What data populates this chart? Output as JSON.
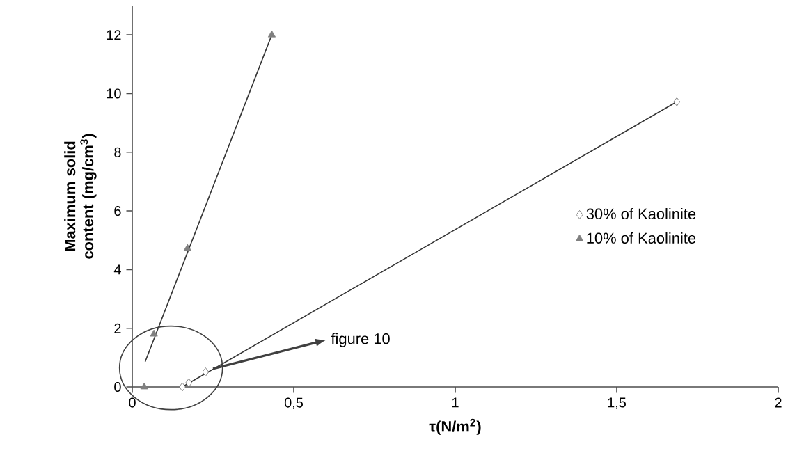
{
  "chart_data": {
    "type": "scatter",
    "xlabel": "τ(N/m$^{2}$)",
    "ylabel": "Maximum solid content (mg/cm$^{3}$)",
    "xlim": [
      0,
      2
    ],
    "ylim": [
      0,
      13
    ],
    "xticks": [
      0,
      {
        "value": 0.5,
        "label": "0,5"
      },
      1,
      {
        "value": 1.5,
        "label": "1,5"
      },
      2
    ],
    "yticks": [
      0,
      2,
      4,
      6,
      8,
      10,
      12
    ],
    "series": [
      {
        "name": "30% of Kaolinite",
        "marker": "diamond",
        "color": "#666666",
        "x": [
          0.155,
          0.175,
          0.227,
          1.686
        ],
        "values": [
          0,
          0.14,
          0.51,
          9.72
        ]
      },
      {
        "name": "10% of Kaolinite",
        "marker": "triangle",
        "color": "#808080",
        "x": [
          0.037,
          0.067,
          0.171,
          0.432
        ],
        "values": [
          0,
          1.8,
          4.72,
          12
        ]
      },
      {
        "type": "line",
        "marker": "none",
        "color": "#333333",
        "x": [
          0.155,
          1.686
        ],
        "values": [
          0,
          9.72
        ]
      },
      {
        "type": "line",
        "marker": "none",
        "color": "#333333",
        "x": [
          0.04,
          0.432
        ],
        "values": [
          0.86,
          12
        ]
      }
    ],
    "annotations": [
      "figure 10"
    ],
    "legend": "right",
    "grid": false
  }
}
